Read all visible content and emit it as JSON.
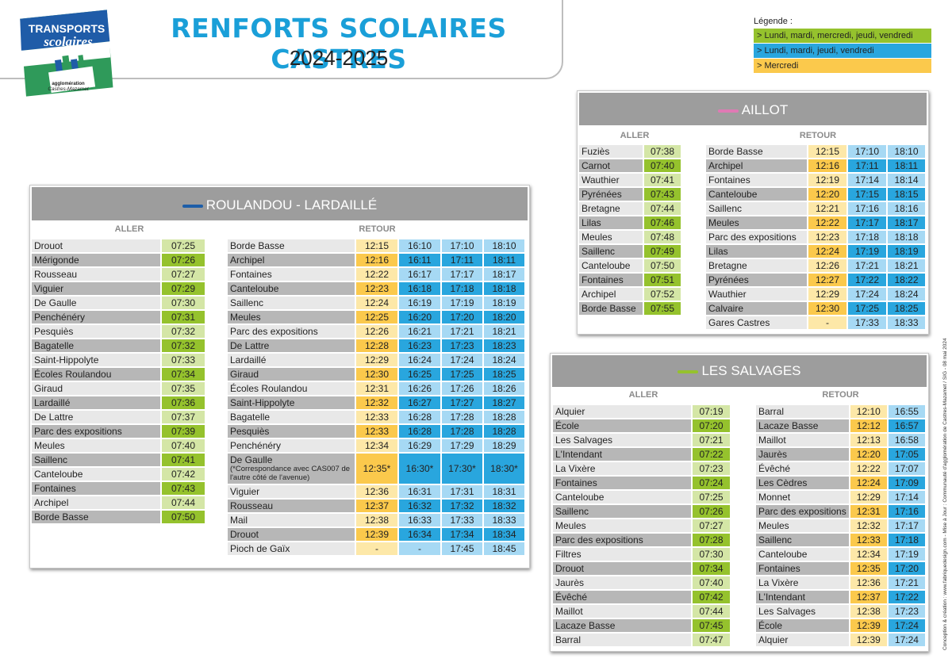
{
  "colors": {
    "green": "#95c22d",
    "green_light": "#d4e6a6",
    "yellow": "#fbc94c",
    "yellow_light": "#fde8a8",
    "blue": "#29a6de",
    "blue_light": "#a6d9f4",
    "title": "#1a9fd8"
  },
  "logo": {
    "line1": "TRANSPORTS",
    "line2": "scolaires",
    "line3": "agglomération",
    "line4": "Castres-Mazamet"
  },
  "header": {
    "title": "RENFORTS SCOLAIRES CASTRES",
    "subtitle": "2024-2025"
  },
  "legend": {
    "title": "Légende :",
    "items": [
      "> Lundi, mardi, mercredi, jeudi, vendredi",
      "> Lundi, mardi, jeudi, vendredi",
      "> Mercredi"
    ]
  },
  "roulandou": {
    "name": "ROULANDOU - LARDAILLÉ",
    "line_color": "#1d5ea8",
    "aller_label": "ALLER",
    "retour_label": "RETOUR",
    "aller": [
      {
        "stop": "Drouot",
        "time": "07:25"
      },
      {
        "stop": "Mérigonde",
        "time": "07:26"
      },
      {
        "stop": "Rousseau",
        "time": "07:27"
      },
      {
        "stop": "Viguier",
        "time": "07:29"
      },
      {
        "stop": "De Gaulle",
        "time": "07:30"
      },
      {
        "stop": "Penchénéry",
        "time": "07:31"
      },
      {
        "stop": "Pesquiès",
        "time": "07:32"
      },
      {
        "stop": "Bagatelle",
        "time": "07:32"
      },
      {
        "stop": "Saint-Hippolyte",
        "time": "07:33"
      },
      {
        "stop": "Écoles Roulandou",
        "time": "07:34"
      },
      {
        "stop": "Giraud",
        "time": "07:35"
      },
      {
        "stop": "Lardaillé",
        "time": "07:36"
      },
      {
        "stop": "De Lattre",
        "time": "07:37"
      },
      {
        "stop": "Parc des expositions",
        "time": "07:39"
      },
      {
        "stop": "Meules",
        "time": "07:40"
      },
      {
        "stop": "Saillenc",
        "time": "07:41"
      },
      {
        "stop": "Canteloube",
        "time": "07:42"
      },
      {
        "stop": "Fontaines",
        "time": "07:43"
      },
      {
        "stop": "Archipel",
        "time": "07:44"
      },
      {
        "stop": "Borde Basse",
        "time": "07:50"
      }
    ],
    "retour": [
      {
        "stop": "Borde Basse",
        "t": [
          "12:15",
          "16:10",
          "17:10",
          "18:10"
        ]
      },
      {
        "stop": "Archipel",
        "t": [
          "12:16",
          "16:11",
          "17:11",
          "18:11"
        ]
      },
      {
        "stop": "Fontaines",
        "t": [
          "12:22",
          "16:17",
          "17:17",
          "18:17"
        ]
      },
      {
        "stop": "Canteloube",
        "t": [
          "12:23",
          "16:18",
          "17:18",
          "18:18"
        ]
      },
      {
        "stop": "Saillenc",
        "t": [
          "12:24",
          "16:19",
          "17:19",
          "18:19"
        ]
      },
      {
        "stop": "Meules",
        "t": [
          "12:25",
          "16:20",
          "17:20",
          "18:20"
        ]
      },
      {
        "stop": "Parc des expositions",
        "t": [
          "12:26",
          "16:21",
          "17:21",
          "18:21"
        ]
      },
      {
        "stop": "De Lattre",
        "t": [
          "12:28",
          "16:23",
          "17:23",
          "18:23"
        ]
      },
      {
        "stop": "Lardaillé",
        "t": [
          "12:29",
          "16:24",
          "17:24",
          "18:24"
        ]
      },
      {
        "stop": "Giraud",
        "t": [
          "12:30",
          "16:25",
          "17:25",
          "18:25"
        ]
      },
      {
        "stop": "Écoles Roulandou",
        "t": [
          "12:31",
          "16:26",
          "17:26",
          "18:26"
        ]
      },
      {
        "stop": "Saint-Hippolyte",
        "t": [
          "12:32",
          "16:27",
          "17:27",
          "18:27"
        ]
      },
      {
        "stop": "Bagatelle",
        "t": [
          "12:33",
          "16:28",
          "17:28",
          "18:28"
        ]
      },
      {
        "stop": "Pesquiès",
        "t": [
          "12:33",
          "16:28",
          "17:28",
          "18:28"
        ]
      },
      {
        "stop": "Penchénéry",
        "t": [
          "12:34",
          "16:29",
          "17:29",
          "18:29"
        ]
      },
      {
        "stop": "De Gaulle",
        "note": "(*Correspondance avec CAS007 de l'autre côté de l'avenue)",
        "t": [
          "12:35*",
          "16:30*",
          "17:30*",
          "18:30*"
        ]
      },
      {
        "stop": "Viguier",
        "t": [
          "12:36",
          "16:31",
          "17:31",
          "18:31"
        ]
      },
      {
        "stop": "Rousseau",
        "t": [
          "12:37",
          "16:32",
          "17:32",
          "18:32"
        ]
      },
      {
        "stop": "Mail",
        "t": [
          "12:38",
          "16:33",
          "17:33",
          "18:33"
        ]
      },
      {
        "stop": "Drouot",
        "t": [
          "12:39",
          "16:34",
          "17:34",
          "18:34"
        ]
      },
      {
        "stop": "Pioch de Gaïx",
        "t": [
          "-",
          "-",
          "17:45",
          "18:45"
        ]
      }
    ]
  },
  "aillot": {
    "name": "AILLOT",
    "line_color": "#e07ab4",
    "aller_label": "ALLER",
    "retour_label": "RETOUR",
    "aller": [
      {
        "stop": "Fuziès",
        "time": "07:38"
      },
      {
        "stop": "Carnot",
        "time": "07:40"
      },
      {
        "stop": "Wauthier",
        "time": "07:41"
      },
      {
        "stop": "Pyrénées",
        "time": "07:43"
      },
      {
        "stop": "Bretagne",
        "time": "07:44"
      },
      {
        "stop": "Lilas",
        "time": "07:46"
      },
      {
        "stop": "Meules",
        "time": "07:48"
      },
      {
        "stop": "Saillenc",
        "time": "07:49"
      },
      {
        "stop": "Canteloube",
        "time": "07:50"
      },
      {
        "stop": "Fontaines",
        "time": "07:51"
      },
      {
        "stop": "Archipel",
        "time": "07:52"
      },
      {
        "stop": "Borde Basse",
        "time": "07:55"
      }
    ],
    "retour": [
      {
        "stop": "Borde Basse",
        "t": [
          "12:15",
          "17:10",
          "18:10"
        ]
      },
      {
        "stop": "Archipel",
        "t": [
          "12:16",
          "17:11",
          "18:11"
        ]
      },
      {
        "stop": "Fontaines",
        "t": [
          "12:19",
          "17:14",
          "18:14"
        ]
      },
      {
        "stop": "Canteloube",
        "t": [
          "12:20",
          "17:15",
          "18:15"
        ]
      },
      {
        "stop": "Saillenc",
        "t": [
          "12:21",
          "17:16",
          "18:16"
        ]
      },
      {
        "stop": "Meules",
        "t": [
          "12:22",
          "17:17",
          "18:17"
        ]
      },
      {
        "stop": "Parc des expositions",
        "t": [
          "12:23",
          "17:18",
          "18:18"
        ]
      },
      {
        "stop": "Lilas",
        "t": [
          "12:24",
          "17:19",
          "18:19"
        ]
      },
      {
        "stop": "Bretagne",
        "t": [
          "12:26",
          "17:21",
          "18:21"
        ]
      },
      {
        "stop": "Pyrénées",
        "t": [
          "12:27",
          "17:22",
          "18:22"
        ]
      },
      {
        "stop": "Wauthier",
        "t": [
          "12:29",
          "17:24",
          "18:24"
        ]
      },
      {
        "stop": "Calvaire",
        "t": [
          "12:30",
          "17:25",
          "18:25"
        ]
      },
      {
        "stop": "Gares Castres",
        "t": [
          "-",
          "17:33",
          "18:33"
        ]
      }
    ]
  },
  "salvages": {
    "name": "LES SALVAGES",
    "line_color": "#95c22d",
    "aller_label": "ALLER",
    "retour_label": "RETOUR",
    "aller": [
      {
        "stop": "Alquier",
        "time": "07:19"
      },
      {
        "stop": "École",
        "time": "07:20"
      },
      {
        "stop": "Les Salvages",
        "time": "07:21"
      },
      {
        "stop": "L'Intendant",
        "time": "07:22"
      },
      {
        "stop": "La Vixère",
        "time": "07:23"
      },
      {
        "stop": "Fontaines",
        "time": "07:24"
      },
      {
        "stop": "Canteloube",
        "time": "07:25"
      },
      {
        "stop": "Saillenc",
        "time": "07:26"
      },
      {
        "stop": "Meules",
        "time": "07:27"
      },
      {
        "stop": "Parc des expositions",
        "time": "07:28"
      },
      {
        "stop": "Filtres",
        "time": "07:30"
      },
      {
        "stop": "Drouot",
        "time": "07:34"
      },
      {
        "stop": "Jaurès",
        "time": "07:40"
      },
      {
        "stop": "Évêché",
        "time": "07:42"
      },
      {
        "stop": "Maillot",
        "time": "07:44"
      },
      {
        "stop": "Lacaze Basse",
        "time": "07:45"
      },
      {
        "stop": "Barral",
        "time": "07:47"
      }
    ],
    "retour": [
      {
        "stop": "Barral",
        "t": [
          "12:10",
          "16:55"
        ]
      },
      {
        "stop": "Lacaze Basse",
        "t": [
          "12:12",
          "16:57"
        ]
      },
      {
        "stop": "Maillot",
        "t": [
          "12:13",
          "16:58"
        ]
      },
      {
        "stop": "Jaurès",
        "t": [
          "12:20",
          "17:05"
        ]
      },
      {
        "stop": "Évêché",
        "t": [
          "12:22",
          "17:07"
        ]
      },
      {
        "stop": "Les Cèdres",
        "t": [
          "12:24",
          "17:09"
        ]
      },
      {
        "stop": "Monnet",
        "t": [
          "12:29",
          "17:14"
        ]
      },
      {
        "stop": "Parc des expositions",
        "t": [
          "12:31",
          "17:16"
        ]
      },
      {
        "stop": "Meules",
        "t": [
          "12:32",
          "17:17"
        ]
      },
      {
        "stop": "Saillenc",
        "t": [
          "12:33",
          "17:18"
        ]
      },
      {
        "stop": "Canteloube",
        "t": [
          "12:34",
          "17:19"
        ]
      },
      {
        "stop": "Fontaines",
        "t": [
          "12:35",
          "17:20"
        ]
      },
      {
        "stop": "La Vixère",
        "t": [
          "12:36",
          "17:21"
        ]
      },
      {
        "stop": "L'Intendant",
        "t": [
          "12:37",
          "17:22"
        ]
      },
      {
        "stop": "Les Salvages",
        "t": [
          "12:38",
          "17:23"
        ]
      },
      {
        "stop": "École",
        "t": [
          "12:39",
          "17:24"
        ]
      },
      {
        "stop": "Alquier",
        "t": [
          "12:39",
          "17:24"
        ]
      }
    ]
  },
  "credit": "Conception & création : www.fabriquedesign.com - Mise à Jour : Communauté d'agglomération de Castres-Mazamet / SIG - 08 mai 2024"
}
